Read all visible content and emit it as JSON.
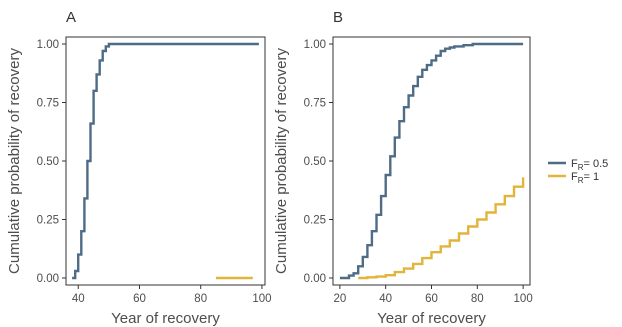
{
  "colors": {
    "series1": "#4e6c86",
    "series2": "#e2b43a",
    "frame": "#333333",
    "text": "#4d4d4d"
  },
  "legend": {
    "items": [
      {
        "prefix": "F",
        "sub": "R",
        "suffix": "= 0.5",
        "color": "#4e6c86"
      },
      {
        "prefix": "F",
        "sub": "R",
        "suffix": "= 1",
        "color": "#e2b43a"
      }
    ]
  },
  "chart_data": [
    {
      "type": "line",
      "step": true,
      "panel_label": "A",
      "xlabel": "Year of recovery",
      "ylabel": "Cumulative probability of recovery",
      "xlim": [
        36,
        101
      ],
      "ylim": [
        -0.03,
        1.03
      ],
      "xticks": [
        40,
        60,
        80,
        100
      ],
      "yticks": [
        0,
        0.25,
        0.5,
        0.75,
        1
      ],
      "ytick_labels": [
        "0.00",
        "0.25",
        "0.50",
        "0.75",
        "1.00"
      ],
      "series": [
        {
          "color": "#4e6c86",
          "x": [
            38,
            39,
            40,
            41,
            42,
            43,
            44,
            45,
            46,
            47,
            48,
            49,
            50,
            51,
            55,
            60,
            70,
            80,
            90,
            99
          ],
          "y": [
            0.0,
            0.03,
            0.1,
            0.2,
            0.34,
            0.5,
            0.66,
            0.8,
            0.87,
            0.93,
            0.97,
            0.99,
            1.0,
            1.0,
            1.0,
            1.0,
            1.0,
            1.0,
            1.0,
            1.0
          ]
        },
        {
          "color": "#e2b43a",
          "x": [
            85,
            90,
            95,
            97
          ],
          "y": [
            0.0,
            0.0,
            0.0,
            0.0
          ]
        }
      ]
    },
    {
      "type": "line",
      "step": true,
      "panel_label": "B",
      "xlabel": "Year of recovery",
      "ylabel": "Cumulative probability of recovery",
      "xlim": [
        17,
        103
      ],
      "ylim": [
        -0.03,
        1.03
      ],
      "xticks": [
        20,
        40,
        60,
        80,
        100
      ],
      "yticks": [
        0,
        0.25,
        0.5,
        0.75,
        1
      ],
      "ytick_labels": [
        "0.00",
        "0.25",
        "0.50",
        "0.75",
        "1.00"
      ],
      "series": [
        {
          "color": "#4e6c86",
          "x": [
            20,
            22,
            24,
            26,
            28,
            30,
            32,
            34,
            36,
            38,
            40,
            42,
            44,
            46,
            48,
            50,
            52,
            54,
            56,
            58,
            60,
            62,
            64,
            66,
            68,
            70,
            74,
            78,
            82,
            90,
            100
          ],
          "y": [
            0.0,
            0.0,
            0.01,
            0.02,
            0.05,
            0.09,
            0.14,
            0.2,
            0.27,
            0.35,
            0.44,
            0.52,
            0.6,
            0.67,
            0.73,
            0.78,
            0.82,
            0.86,
            0.89,
            0.91,
            0.93,
            0.95,
            0.97,
            0.98,
            0.985,
            0.99,
            0.995,
            1.0,
            1.0,
            1.0,
            1.0
          ]
        },
        {
          "color": "#e2b43a",
          "x": [
            28,
            32,
            36,
            40,
            44,
            48,
            52,
            56,
            60,
            64,
            68,
            72,
            76,
            80,
            84,
            88,
            92,
            96,
            100
          ],
          "y": [
            0.0,
            0.003,
            0.006,
            0.012,
            0.025,
            0.04,
            0.06,
            0.085,
            0.11,
            0.135,
            0.16,
            0.19,
            0.22,
            0.25,
            0.28,
            0.315,
            0.35,
            0.39,
            0.43
          ]
        }
      ]
    }
  ]
}
